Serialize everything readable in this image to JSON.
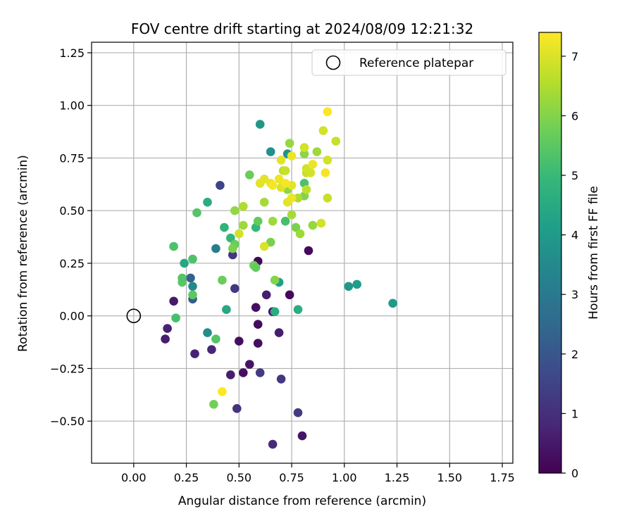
{
  "chart_data": {
    "type": "scatter",
    "title": "FOV centre drift starting at 2024/08/09 12:21:32",
    "xlabel": "Angular distance from reference (arcmin)",
    "ylabel": "Rotation from reference (arcmin)",
    "xlim": [
      -0.2,
      1.8
    ],
    "ylim": [
      -0.7,
      1.3
    ],
    "xticks": [
      0.0,
      0.25,
      0.5,
      0.75,
      1.0,
      1.25,
      1.5,
      1.75
    ],
    "xtick_labels": [
      "0.00",
      "0.25",
      "0.50",
      "0.75",
      "1.00",
      "1.25",
      "1.50",
      "1.75"
    ],
    "yticks": [
      -0.5,
      -0.25,
      0.0,
      0.25,
      0.5,
      0.75,
      1.0,
      1.25
    ],
    "ytick_labels": [
      "−0.50",
      "−0.25",
      "0.00",
      "0.25",
      "0.50",
      "0.75",
      "1.00",
      "1.25"
    ],
    "grid": true,
    "legend": {
      "placement": "top-right",
      "entries": [
        "Reference platepar"
      ]
    },
    "reference_point": {
      "x": 0.0,
      "y": 0.0
    },
    "colorbar": {
      "label": "Hours from first FF file",
      "range": [
        0,
        7.4
      ],
      "ticks": [
        0,
        1,
        2,
        3,
        4,
        5,
        6,
        7
      ],
      "tick_labels": [
        "0",
        "1",
        "2",
        "3",
        "4",
        "5",
        "6",
        "7"
      ],
      "colormap": [
        "#440154",
        "#482878",
        "#3e4989",
        "#31688e",
        "#26828e",
        "#1f9e89",
        "#35b779",
        "#6ece58",
        "#b5de2b",
        "#fde725"
      ]
    },
    "points": [
      [
        0.15,
        -0.11,
        0.6
      ],
      [
        0.16,
        -0.06,
        0.7
      ],
      [
        0.19,
        0.07,
        0.5
      ],
      [
        0.29,
        -0.18,
        0.7
      ],
      [
        0.37,
        -0.16,
        0.8
      ],
      [
        0.46,
        -0.28,
        0.6
      ],
      [
        0.5,
        -0.12,
        0.3
      ],
      [
        0.52,
        -0.27,
        0.3
      ],
      [
        0.55,
        -0.23,
        0.4
      ],
      [
        0.58,
        0.04,
        0.3
      ],
      [
        0.59,
        -0.04,
        0.2
      ],
      [
        0.59,
        -0.13,
        0.3
      ],
      [
        0.59,
        0.26,
        0.1
      ],
      [
        0.63,
        0.1,
        0.6
      ],
      [
        0.66,
        0.02,
        0.4
      ],
      [
        0.66,
        -0.61,
        0.9
      ],
      [
        0.69,
        -0.08,
        0.6
      ],
      [
        0.74,
        0.1,
        0.2
      ],
      [
        0.8,
        -0.57,
        0.4
      ],
      [
        0.83,
        0.31,
        0.2
      ],
      [
        0.78,
        -0.46,
        1.3
      ],
      [
        0.49,
        -0.44,
        1.1
      ],
      [
        0.6,
        -0.27,
        1.3
      ],
      [
        0.7,
        -0.3,
        1.2
      ],
      [
        0.48,
        0.13,
        1.2
      ],
      [
        0.47,
        0.29,
        1.2
      ],
      [
        0.28,
        0.08,
        2.2
      ],
      [
        0.27,
        0.18,
        2.3
      ],
      [
        0.41,
        0.62,
        1.5
      ],
      [
        0.39,
        0.32,
        3.1
      ],
      [
        0.35,
        -0.08,
        3.6
      ],
      [
        0.28,
        0.14,
        3.5
      ],
      [
        0.6,
        0.91,
        3.9
      ],
      [
        0.65,
        0.78,
        3.7
      ],
      [
        0.73,
        0.77,
        3.8
      ],
      [
        1.02,
        0.14,
        3.9
      ],
      [
        1.06,
        0.15,
        4.1
      ],
      [
        1.23,
        0.06,
        4.0
      ],
      [
        0.44,
        0.03,
        4.4
      ],
      [
        0.24,
        0.25,
        4.4
      ],
      [
        0.35,
        0.54,
        4.6
      ],
      [
        0.67,
        0.02,
        4.6
      ],
      [
        0.78,
        0.03,
        4.6
      ],
      [
        0.69,
        0.16,
        4.1
      ],
      [
        0.58,
        0.42,
        4.9
      ],
      [
        0.46,
        0.37,
        4.9
      ],
      [
        0.43,
        0.42,
        4.8
      ],
      [
        0.72,
        0.45,
        5.2
      ],
      [
        0.81,
        0.63,
        5.3
      ],
      [
        0.39,
        -0.11,
        5.4
      ],
      [
        0.2,
        -0.01,
        5.2
      ],
      [
        0.19,
        0.33,
        5.3
      ],
      [
        0.23,
        0.16,
        5.5
      ],
      [
        0.23,
        0.18,
        5.4
      ],
      [
        0.28,
        0.27,
        5.3
      ],
      [
        0.28,
        0.1,
        5.5
      ],
      [
        0.3,
        0.49,
        5.4
      ],
      [
        0.42,
        0.17,
        5.7
      ],
      [
        0.48,
        0.34,
        5.7
      ],
      [
        0.47,
        0.32,
        5.9
      ],
      [
        0.57,
        0.24,
        5.8
      ],
      [
        0.58,
        0.23,
        5.6
      ],
      [
        0.55,
        0.67,
        5.7
      ],
      [
        0.59,
        0.45,
        5.6
      ],
      [
        0.65,
        0.35,
        5.9
      ],
      [
        0.67,
        0.17,
        6.0
      ],
      [
        0.38,
        -0.42,
        5.8
      ],
      [
        0.73,
        0.6,
        6.1
      ],
      [
        0.77,
        0.42,
        5.9
      ],
      [
        0.79,
        0.39,
        6.3
      ],
      [
        0.81,
        0.57,
        6.0
      ],
      [
        0.85,
        0.43,
        6.2
      ],
      [
        0.74,
        0.82,
        6.2
      ],
      [
        0.81,
        0.77,
        6.1
      ],
      [
        0.87,
        0.78,
        6.3
      ],
      [
        0.6,
        0.63,
        5.8
      ],
      [
        0.66,
        0.45,
        6.3
      ],
      [
        0.62,
        0.54,
        6.4
      ],
      [
        0.48,
        0.5,
        6.2
      ],
      [
        0.52,
        0.52,
        6.5
      ],
      [
        0.52,
        0.43,
        6.3
      ],
      [
        0.75,
        0.48,
        6.4
      ],
      [
        0.78,
        0.56,
        6.5
      ],
      [
        0.82,
        0.6,
        6.7
      ],
      [
        0.89,
        0.44,
        6.9
      ],
      [
        0.92,
        0.56,
        6.8
      ],
      [
        0.92,
        0.74,
        6.9
      ],
      [
        0.96,
        0.83,
        6.8
      ],
      [
        0.9,
        0.88,
        6.9
      ],
      [
        0.81,
        0.8,
        6.9
      ],
      [
        0.71,
        0.69,
        6.6
      ],
      [
        0.72,
        0.69,
        6.8
      ],
      [
        0.82,
        0.68,
        6.8
      ],
      [
        0.82,
        0.7,
        6.9
      ],
      [
        0.84,
        0.68,
        6.9
      ],
      [
        0.5,
        0.39,
        6.9
      ],
      [
        0.62,
        0.33,
        7.0
      ],
      [
        0.7,
        0.61,
        7.0
      ],
      [
        0.73,
        0.54,
        7.1
      ],
      [
        0.75,
        0.62,
        7.1
      ],
      [
        0.75,
        0.56,
        7.2
      ],
      [
        0.7,
        0.74,
        7.1
      ],
      [
        0.75,
        0.76,
        7.2
      ],
      [
        0.85,
        0.72,
        7.2
      ],
      [
        0.6,
        0.63,
        7.1
      ],
      [
        0.62,
        0.65,
        7.1
      ],
      [
        0.65,
        0.63,
        7.2
      ],
      [
        0.66,
        0.62,
        7.3
      ],
      [
        0.69,
        0.65,
        7.2
      ],
      [
        0.72,
        0.63,
        7.3
      ],
      [
        0.91,
        0.68,
        7.3
      ],
      [
        0.92,
        0.97,
        7.4
      ],
      [
        0.42,
        -0.36,
        7.4
      ]
    ]
  }
}
